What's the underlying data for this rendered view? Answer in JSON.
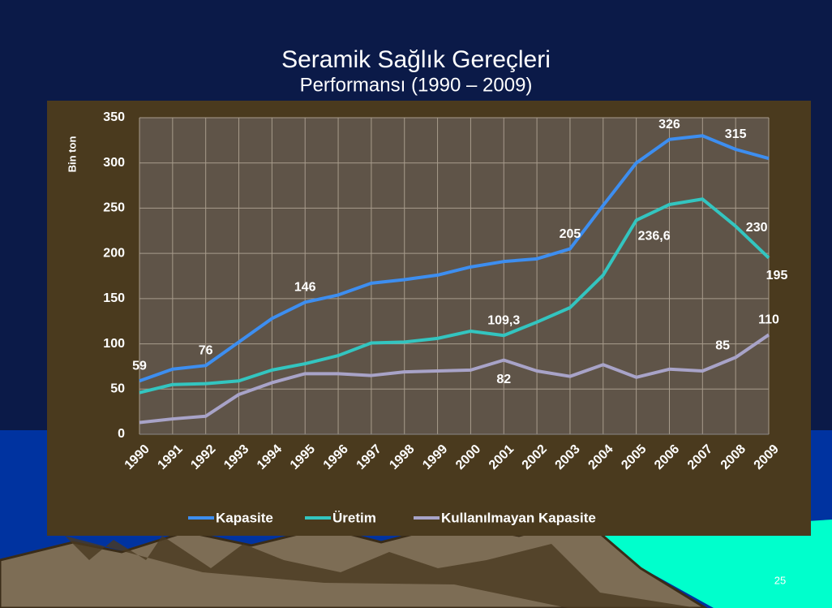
{
  "header": {
    "title": "Seramik Sağlık Gereçleri",
    "subtitle": "Performansı (1990 – 2009)",
    "page_number": "25"
  },
  "chart_data": {
    "type": "line",
    "y_label": "Bin ton",
    "categories": [
      "1990",
      "1991",
      "1992",
      "1993",
      "1994",
      "1995",
      "1996",
      "1997",
      "1998",
      "1999",
      "2000",
      "2001",
      "2002",
      "2003",
      "2004",
      "2005",
      "2006",
      "2007",
      "2008",
      "2009"
    ],
    "series": [
      {
        "name": "Kapasite",
        "color": "#3d8ef0",
        "values": [
          59,
          72,
          76,
          102,
          128,
          146,
          154,
          167,
          171,
          176,
          185,
          191,
          194,
          205,
          253,
          300,
          326,
          330,
          315,
          305
        ],
        "value_labels": [
          "59",
          null,
          "76",
          null,
          null,
          "146",
          null,
          null,
          null,
          null,
          null,
          null,
          null,
          "205",
          null,
          null,
          "326",
          null,
          "315",
          null
        ]
      },
      {
        "name": "Üretim",
        "color": "#33c5c0",
        "values": [
          46,
          55,
          56,
          59,
          71,
          78,
          87,
          101,
          102,
          106,
          114,
          109.3,
          124,
          140,
          176,
          236.6,
          254,
          260,
          230,
          195
        ],
        "value_labels": [
          null,
          null,
          null,
          null,
          null,
          null,
          null,
          null,
          null,
          null,
          null,
          "109,3",
          null,
          null,
          null,
          "236,6",
          null,
          null,
          "230",
          "195"
        ]
      },
      {
        "name": "Kullanılmayan Kapasite",
        "color": "#a8a3c8",
        "values": [
          13,
          17,
          20,
          44,
          57,
          67,
          67,
          65,
          69,
          70,
          71,
          82,
          70,
          64,
          77,
          63,
          72,
          70,
          85,
          110
        ],
        "value_labels": [
          null,
          null,
          null,
          null,
          null,
          null,
          null,
          null,
          null,
          null,
          null,
          "82",
          null,
          null,
          null,
          null,
          null,
          null,
          "85",
          "110"
        ]
      }
    ],
    "ylim": [
      0,
      350
    ],
    "yticks": [
      0,
      50,
      100,
      150,
      200,
      250,
      300,
      350
    ],
    "grid": true,
    "legend": "bottom"
  }
}
